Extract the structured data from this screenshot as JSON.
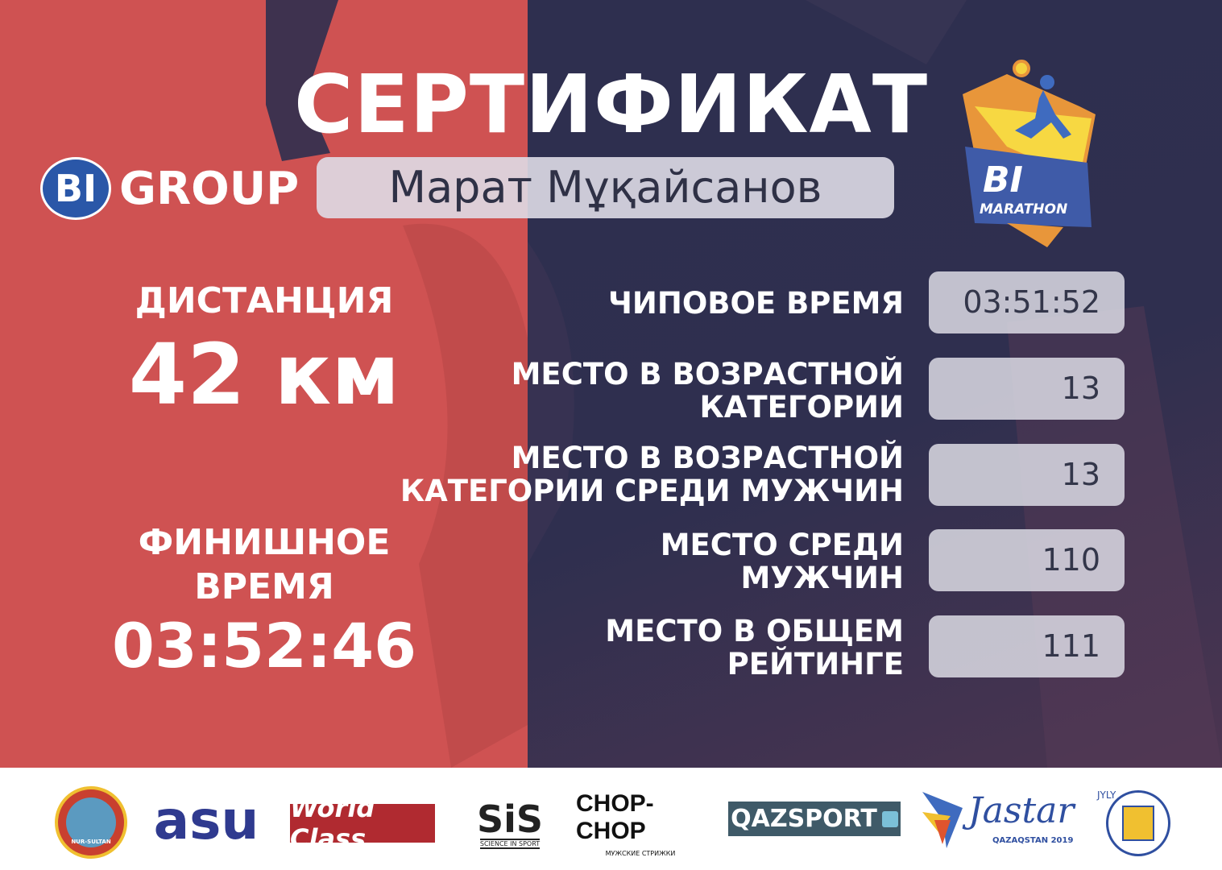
{
  "title": "СЕРТИФИКАТ",
  "participant_name": "Марат Мұқайсанов",
  "organizer_logo": {
    "bi": "BI",
    "group": "GROUP"
  },
  "event_logo": {
    "line1": "BI",
    "line2": "MARATHON"
  },
  "distance": {
    "label": "ДИСТАНЦИЯ",
    "value": "42 км"
  },
  "finish_time": {
    "label_line1": "ФИНИШНОЕ",
    "label_line2": "ВРЕМЯ",
    "value": "03:52:46"
  },
  "results": [
    {
      "label": [
        "ЧИПОВОЕ ВРЕМЯ"
      ],
      "value": "03:51:52"
    },
    {
      "label": [
        "МЕСТО В ВОЗРАСТНОЙ",
        "КАТЕГОРИИ"
      ],
      "value": "13"
    },
    {
      "label": [
        "МЕСТО В ВОЗРАСТНОЙ",
        "КАТЕГОРИИ СРЕДИ МУЖЧИН"
      ],
      "value": "13"
    },
    {
      "label": [
        "МЕСТО СРЕДИ",
        "МУЖЧИН"
      ],
      "value": "110"
    },
    {
      "label": [
        "МЕСТО В ОБЩЕМ",
        "РЕЙТИНГЕ"
      ],
      "value": "111"
    }
  ],
  "sponsors": {
    "nur_sultan": "NUR-SULTAN",
    "asu": "asu",
    "world_class": "World Class",
    "sis": "SiS",
    "sis_sub": "SCIENCE IN SPORT",
    "chop": "CHOP-CHOP",
    "chop_sub": "МУЖСКИЕ СТРИЖКИ",
    "qazsport": "QAZSPORT",
    "jastar": "Jastar",
    "jastar_jyly": "JYLY",
    "jastar_sub": "QAZAQSTAN 2019"
  },
  "colors": {
    "red": "#cf5252",
    "navy": "#2e2f4f",
    "plum": "#4c3550",
    "brand_blue": "#2a57a8"
  }
}
